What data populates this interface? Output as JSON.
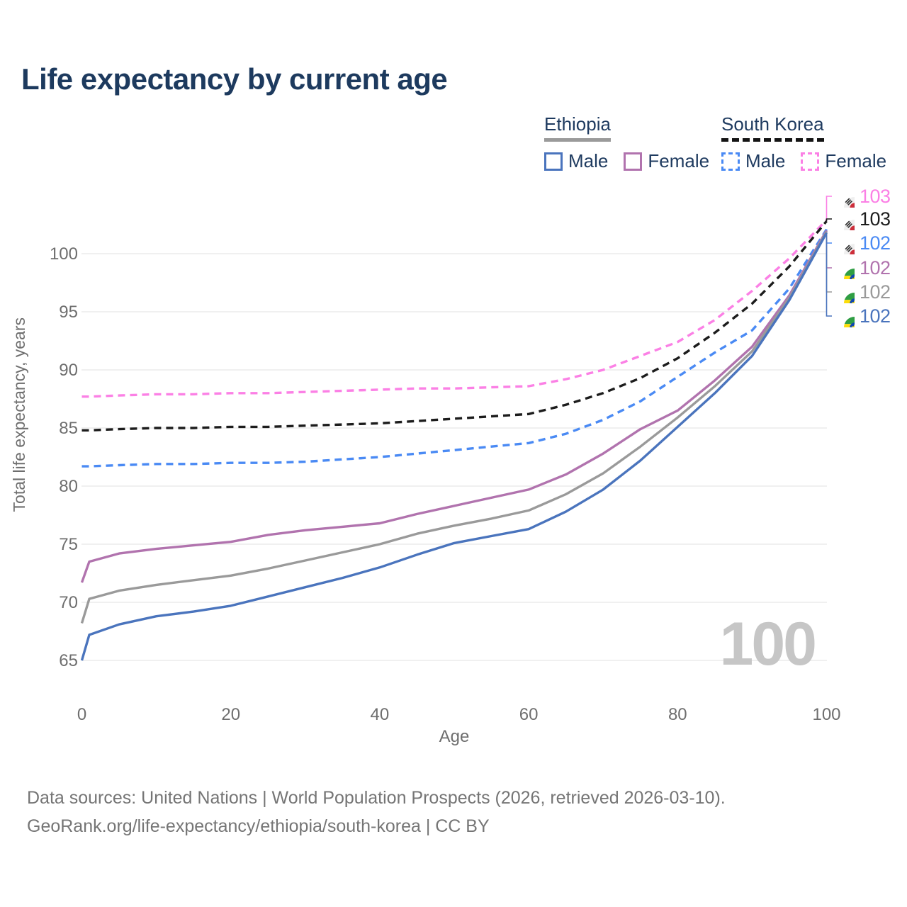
{
  "title": "Life expectancy by current age",
  "watermark": "100",
  "legend": {
    "groups": [
      {
        "label": "Ethiopia",
        "underline_style": "solid",
        "items": [
          {
            "label": "Male",
            "color": "#4a74bd",
            "dash": false
          },
          {
            "label": "Female",
            "color": "#b173ae",
            "dash": false
          }
        ]
      },
      {
        "label": "South Korea",
        "underline_style": "dashed",
        "items": [
          {
            "label": "Male",
            "color": "#4a8af4",
            "dash": true
          },
          {
            "label": "Female",
            "color": "#fb80e5",
            "dash": true
          }
        ]
      }
    ]
  },
  "footer": {
    "line1": "Data sources: United Nations | World Population Prospects (2026, retrieved 2026-03-10).",
    "line2": "GeoRank.org/life-expectancy/ethiopia/south-korea | CC BY"
  },
  "chart_data": {
    "type": "line",
    "title": "Life expectancy by current age",
    "xlabel": "Age",
    "ylabel": "Total life expectancy, years",
    "xlim": [
      0,
      100
    ],
    "ylim": [
      63.5,
      104.5
    ],
    "x_ticks": [
      0,
      20,
      40,
      60,
      80,
      100
    ],
    "y_ticks": [
      65,
      70,
      75,
      80,
      85,
      90,
      95,
      100
    ],
    "grid": "horizontal-only",
    "legend_position": "top-right",
    "series": [
      {
        "id": "sk_female",
        "name": "South Korea Female",
        "country": "South Korea",
        "sex": "female",
        "color": "#fb80e5",
        "dash": true,
        "points": [
          [
            0,
            87.7
          ],
          [
            1,
            87.7
          ],
          [
            5,
            87.8
          ],
          [
            10,
            87.9
          ],
          [
            15,
            87.9
          ],
          [
            20,
            88.0
          ],
          [
            25,
            88.0
          ],
          [
            30,
            88.1
          ],
          [
            35,
            88.2
          ],
          [
            40,
            88.3
          ],
          [
            45,
            88.4
          ],
          [
            50,
            88.4
          ],
          [
            55,
            88.5
          ],
          [
            60,
            88.6
          ],
          [
            65,
            89.2
          ],
          [
            70,
            90.0
          ],
          [
            75,
            91.2
          ],
          [
            80,
            92.4
          ],
          [
            85,
            94.3
          ],
          [
            90,
            96.8
          ],
          [
            95,
            99.6
          ],
          [
            100,
            102.9
          ]
        ]
      },
      {
        "id": "sk_total",
        "name": "South Korea Both sexes",
        "country": "South Korea",
        "sex": "total",
        "color": "#1c1c1c",
        "dash": true,
        "points": [
          [
            0,
            84.8
          ],
          [
            1,
            84.8
          ],
          [
            5,
            84.9
          ],
          [
            10,
            85.0
          ],
          [
            15,
            85.0
          ],
          [
            20,
            85.1
          ],
          [
            25,
            85.1
          ],
          [
            30,
            85.2
          ],
          [
            35,
            85.3
          ],
          [
            40,
            85.4
          ],
          [
            45,
            85.6
          ],
          [
            50,
            85.8
          ],
          [
            55,
            86.0
          ],
          [
            60,
            86.2
          ],
          [
            65,
            87.0
          ],
          [
            70,
            88.0
          ],
          [
            75,
            89.3
          ],
          [
            80,
            91.0
          ],
          [
            85,
            93.2
          ],
          [
            90,
            95.7
          ],
          [
            95,
            98.9
          ],
          [
            100,
            102.8
          ]
        ]
      },
      {
        "id": "sk_male",
        "name": "South Korea Male",
        "country": "South Korea",
        "sex": "male",
        "color": "#4a8af4",
        "dash": true,
        "points": [
          [
            0,
            81.7
          ],
          [
            1,
            81.7
          ],
          [
            5,
            81.8
          ],
          [
            10,
            81.9
          ],
          [
            15,
            81.9
          ],
          [
            20,
            82.0
          ],
          [
            25,
            82.0
          ],
          [
            30,
            82.1
          ],
          [
            35,
            82.3
          ],
          [
            40,
            82.5
          ],
          [
            45,
            82.8
          ],
          [
            50,
            83.1
          ],
          [
            55,
            83.4
          ],
          [
            60,
            83.7
          ],
          [
            65,
            84.5
          ],
          [
            70,
            85.7
          ],
          [
            75,
            87.3
          ],
          [
            80,
            89.4
          ],
          [
            85,
            91.5
          ],
          [
            90,
            93.4
          ],
          [
            95,
            97.0
          ],
          [
            100,
            102.1
          ]
        ]
      },
      {
        "id": "eth_female",
        "name": "Ethiopia Female",
        "country": "Ethiopia",
        "sex": "female",
        "color": "#b173ae",
        "dash": false,
        "points": [
          [
            0,
            71.7
          ],
          [
            1,
            73.5
          ],
          [
            5,
            74.2
          ],
          [
            10,
            74.6
          ],
          [
            15,
            74.9
          ],
          [
            20,
            75.2
          ],
          [
            25,
            75.8
          ],
          [
            30,
            76.2
          ],
          [
            35,
            76.5
          ],
          [
            40,
            76.8
          ],
          [
            45,
            77.6
          ],
          [
            50,
            78.3
          ],
          [
            55,
            79.0
          ],
          [
            60,
            79.7
          ],
          [
            65,
            81.0
          ],
          [
            70,
            82.8
          ],
          [
            75,
            84.9
          ],
          [
            80,
            86.5
          ],
          [
            85,
            89.1
          ],
          [
            90,
            92.0
          ],
          [
            95,
            96.4
          ],
          [
            100,
            102.0
          ]
        ]
      },
      {
        "id": "eth_total",
        "name": "Ethiopia Both sexes",
        "country": "Ethiopia",
        "sex": "total",
        "color": "#9a9a9a",
        "dash": false,
        "points": [
          [
            0,
            68.2
          ],
          [
            1,
            70.3
          ],
          [
            5,
            71.0
          ],
          [
            10,
            71.5
          ],
          [
            15,
            71.9
          ],
          [
            20,
            72.3
          ],
          [
            25,
            72.9
          ],
          [
            30,
            73.6
          ],
          [
            35,
            74.3
          ],
          [
            40,
            75.0
          ],
          [
            45,
            75.9
          ],
          [
            50,
            76.6
          ],
          [
            55,
            77.2
          ],
          [
            60,
            77.9
          ],
          [
            65,
            79.3
          ],
          [
            70,
            81.1
          ],
          [
            75,
            83.4
          ],
          [
            80,
            85.9
          ],
          [
            85,
            88.6
          ],
          [
            90,
            91.6
          ],
          [
            95,
            96.2
          ],
          [
            100,
            101.9
          ]
        ]
      },
      {
        "id": "eth_male",
        "name": "Ethiopia Male",
        "country": "Ethiopia",
        "sex": "male",
        "color": "#4a74bd",
        "dash": false,
        "points": [
          [
            0,
            65.0
          ],
          [
            1,
            67.2
          ],
          [
            5,
            68.1
          ],
          [
            10,
            68.8
          ],
          [
            15,
            69.2
          ],
          [
            20,
            69.7
          ],
          [
            25,
            70.5
          ],
          [
            30,
            71.3
          ],
          [
            35,
            72.1
          ],
          [
            40,
            73.0
          ],
          [
            45,
            74.1
          ],
          [
            50,
            75.1
          ],
          [
            55,
            75.7
          ],
          [
            60,
            76.3
          ],
          [
            65,
            77.8
          ],
          [
            70,
            79.7
          ],
          [
            75,
            82.2
          ],
          [
            80,
            85.1
          ],
          [
            85,
            88.0
          ],
          [
            90,
            91.2
          ],
          [
            95,
            96.0
          ],
          [
            100,
            101.8
          ]
        ]
      }
    ],
    "end_labels": [
      {
        "series_id": "sk_female",
        "value": "103",
        "color": "#fb80e5",
        "flag": "south-korea"
      },
      {
        "series_id": "sk_total",
        "value": "103",
        "color": "#1c1c1c",
        "flag": "south-korea"
      },
      {
        "series_id": "sk_male",
        "value": "102",
        "color": "#4a8af4",
        "flag": "south-korea"
      },
      {
        "series_id": "eth_female",
        "value": "102",
        "color": "#b173ae",
        "flag": "ethiopia"
      },
      {
        "series_id": "eth_total",
        "value": "102",
        "color": "#9a9a9a",
        "flag": "ethiopia"
      },
      {
        "series_id": "eth_male",
        "value": "102",
        "color": "#4a74bd",
        "flag": "ethiopia"
      }
    ]
  }
}
